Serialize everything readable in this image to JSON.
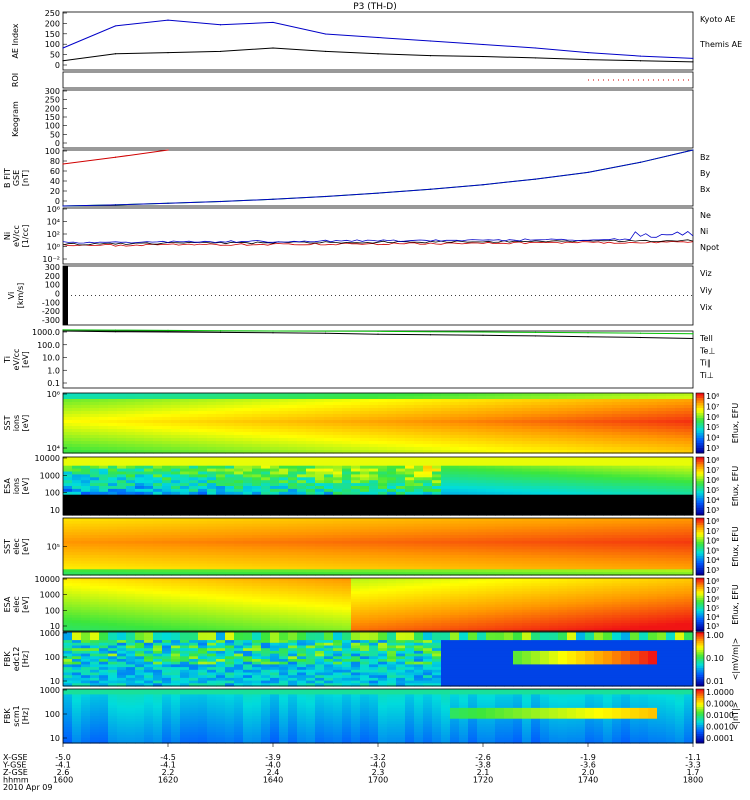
{
  "title": "P3 (TH-D)",
  "panels": [
    {
      "id": "ae",
      "ylabel": [
        "AE Index"
      ],
      "ticks": [
        "250",
        "200",
        "150",
        "100",
        "50",
        "0"
      ],
      "legend": [
        {
          "text": "Kyoto AE",
          "color": "#0000c8"
        },
        {
          "text": "Themis AE",
          "color": "#000000"
        }
      ]
    },
    {
      "id": "roi",
      "ylabel": [
        "ROI"
      ],
      "ticks": [],
      "legend": []
    },
    {
      "id": "keogram",
      "ylabel": [
        "Keogram"
      ],
      "ticks": [
        "300",
        "250",
        "200",
        "150",
        "100",
        "50",
        "0"
      ],
      "legend": []
    },
    {
      "id": "bfit",
      "ylabel": [
        "B FIT",
        "GSE",
        "[nT]"
      ],
      "ticks": [
        "100",
        "80",
        "60",
        "40",
        "20",
        "0"
      ],
      "legend": [
        {
          "text": "Bz",
          "color": "#d00000"
        },
        {
          "text": "By",
          "color": "#00c000"
        },
        {
          "text": "Bx",
          "color": "#0000c8"
        }
      ]
    },
    {
      "id": "ni",
      "ylabel": [
        "Ni",
        "eV/cc",
        "[1/cc]"
      ],
      "ticks": [
        "10⁶",
        "10⁴",
        "10²",
        "10⁰",
        "10⁻²"
      ],
      "legend": [
        {
          "text": "Ne",
          "color": "#d00000"
        },
        {
          "text": "Ni",
          "color": "#000000"
        },
        {
          "text": "Npot",
          "color": "#0000c8"
        }
      ]
    },
    {
      "id": "vi",
      "ylabel": [
        "Vi",
        "[km/s]"
      ],
      "ticks": [
        "300",
        "200",
        "100",
        "0",
        "-100",
        "-200",
        "-300"
      ],
      "legend": [
        {
          "text": "Viz",
          "color": "#d00000"
        },
        {
          "text": "Viy",
          "color": "#00c000"
        },
        {
          "text": "Vix",
          "color": "#0000c8"
        }
      ]
    },
    {
      "id": "ti",
      "ylabel": [
        "Ti",
        "eV/cc",
        "[eV]"
      ],
      "ticks": [
        "1000.0",
        "100.0",
        "10.0",
        "1.0",
        "0.1"
      ],
      "legend": [
        {
          "text": "Tell",
          "color": "#000000"
        },
        {
          "text": "Te⊥",
          "color": "#d00000"
        },
        {
          "text": "Ti∥",
          "color": "#00c000"
        },
        {
          "text": "Ti⊥",
          "color": "#0000c8"
        }
      ]
    },
    {
      "id": "sst_i",
      "ylabel": [
        "SST",
        "ions",
        "[eV]"
      ],
      "ticks": [
        "10⁶",
        "10⁴"
      ],
      "cbar": [
        "10⁸",
        "10⁷",
        "10⁶",
        "10⁵",
        "10⁴",
        "10³"
      ],
      "clabel": "Eflux, EFU"
    },
    {
      "id": "esa_i",
      "ylabel": [
        "ESA",
        "ions",
        "[eV]"
      ],
      "ticks": [
        "10000",
        "1000",
        "100",
        "10"
      ],
      "cbar": [
        "10⁸",
        "10⁷",
        "10⁶",
        "10⁵",
        "10⁴",
        "10³"
      ],
      "clabel": "Eflux, EFU"
    },
    {
      "id": "sst_e",
      "ylabel": [
        "SST",
        "elec",
        "[eV]"
      ],
      "ticks": [
        "10⁵"
      ],
      "cbar": [
        "10⁸",
        "10⁷",
        "10⁶",
        "10⁵",
        "10⁴",
        "10³"
      ],
      "clabel": "Eflux, EFU"
    },
    {
      "id": "esa_e",
      "ylabel": [
        "ESA",
        "elec",
        "[eV]"
      ],
      "ticks": [
        "10000",
        "1000",
        "100",
        "10"
      ],
      "cbar": [
        "10⁸",
        "10⁷",
        "10⁶",
        "10⁵",
        "10⁴",
        "10³"
      ],
      "clabel": "Eflux, EFU"
    },
    {
      "id": "fbk_e",
      "ylabel": [
        "FBK",
        "edc12",
        "[Hz]"
      ],
      "ticks": [
        "1000",
        "100",
        "10"
      ],
      "cbar": [
        "1.00",
        "0.10",
        "0.01"
      ],
      "clabel": "<|mV/m|>"
    },
    {
      "id": "fbk_b",
      "ylabel": [
        "FBK",
        "scm1",
        "[Hz]"
      ],
      "ticks": [
        "1000",
        "100",
        "10"
      ],
      "cbar": [
        "1.0000",
        "0.1000",
        "0.0100",
        "0.0010",
        "0.0001"
      ],
      "clabel": "<|nT|>"
    }
  ],
  "xaxis": {
    "row_labels": [
      "X-GSE",
      "Y-GSE",
      "Z-GSE",
      "hhmm",
      "2010 Apr 09"
    ],
    "columns": [
      [
        "-5.0",
        "-4.1",
        "2.6",
        "1600"
      ],
      [
        "-4.5",
        "-4.1",
        "2.2",
        "1620"
      ],
      [
        "-3.9",
        "-4.0",
        "2.4",
        "1640"
      ],
      [
        "-3.2",
        "-4.0",
        "2.3",
        "1700"
      ],
      [
        "-2.6",
        "-3.8",
        "2.1",
        "1720"
      ],
      [
        "-1.9",
        "-3.6",
        "2.0",
        "1740"
      ],
      [
        "-1.1",
        "-3.3",
        "1.7",
        "1800"
      ]
    ]
  },
  "chart_data": {
    "type": "line",
    "title": "P3 (TH-D)",
    "x_time": [
      "16:00",
      "16:10",
      "16:20",
      "16:30",
      "16:40",
      "16:50",
      "17:00",
      "17:10",
      "17:20",
      "17:30",
      "17:40",
      "17:50",
      "18:00"
    ],
    "xlim": [
      "16:00",
      "18:00"
    ],
    "date": "2010 Apr 09",
    "ae_index": {
      "ylim": [
        0,
        250
      ],
      "series": [
        {
          "name": "Kyoto AE",
          "color": "#0000c8",
          "values": [
            95,
            190,
            215,
            195,
            205,
            155,
            140,
            125,
            110,
            95,
            75,
            60,
            50
          ]
        },
        {
          "name": "Themis AE",
          "color": "#000000",
          "values": [
            40,
            70,
            75,
            80,
            95,
            80,
            70,
            62,
            58,
            52,
            45,
            40,
            35
          ]
        }
      ]
    },
    "b_fit": {
      "ylim": [
        0,
        100
      ],
      "series": [
        {
          "name": "Bz",
          "color": "#d00000",
          "values": [
            75,
            87,
            100,
            null,
            null,
            null,
            null,
            null,
            null,
            null,
            null,
            null,
            null
          ]
        },
        {
          "name": "By",
          "color": "#00c000",
          "values": [
            0,
            2,
            5,
            8,
            12,
            17,
            23,
            30,
            38,
            48,
            60,
            78,
            100
          ]
        },
        {
          "name": "Bx",
          "color": "#0000c8",
          "values": [
            0,
            2,
            5,
            8,
            12,
            17,
            23,
            30,
            38,
            48,
            60,
            78,
            100
          ]
        }
      ]
    },
    "ti": {
      "ylim": [
        0.1,
        1000
      ],
      "scale": "log",
      "series": [
        {
          "name": "Tell",
          "color": "#000000",
          "values": [
            1000,
            900,
            850,
            800,
            750,
            700,
            600,
            550,
            500,
            450,
            400,
            350,
            300
          ]
        },
        {
          "name": "Ti∥",
          "color": "#00c000",
          "values": [
            1200,
            1150,
            1100,
            1050,
            1000,
            980,
            950,
            900,
            850,
            800,
            750,
            700,
            650
          ]
        }
      ]
    },
    "vi": {
      "ylim": [
        -300,
        300
      ]
    },
    "ni": {
      "ylim": [
        0.01,
        1000000
      ],
      "scale": "log"
    },
    "keogram": {
      "ylim": [
        0,
        300
      ]
    }
  }
}
